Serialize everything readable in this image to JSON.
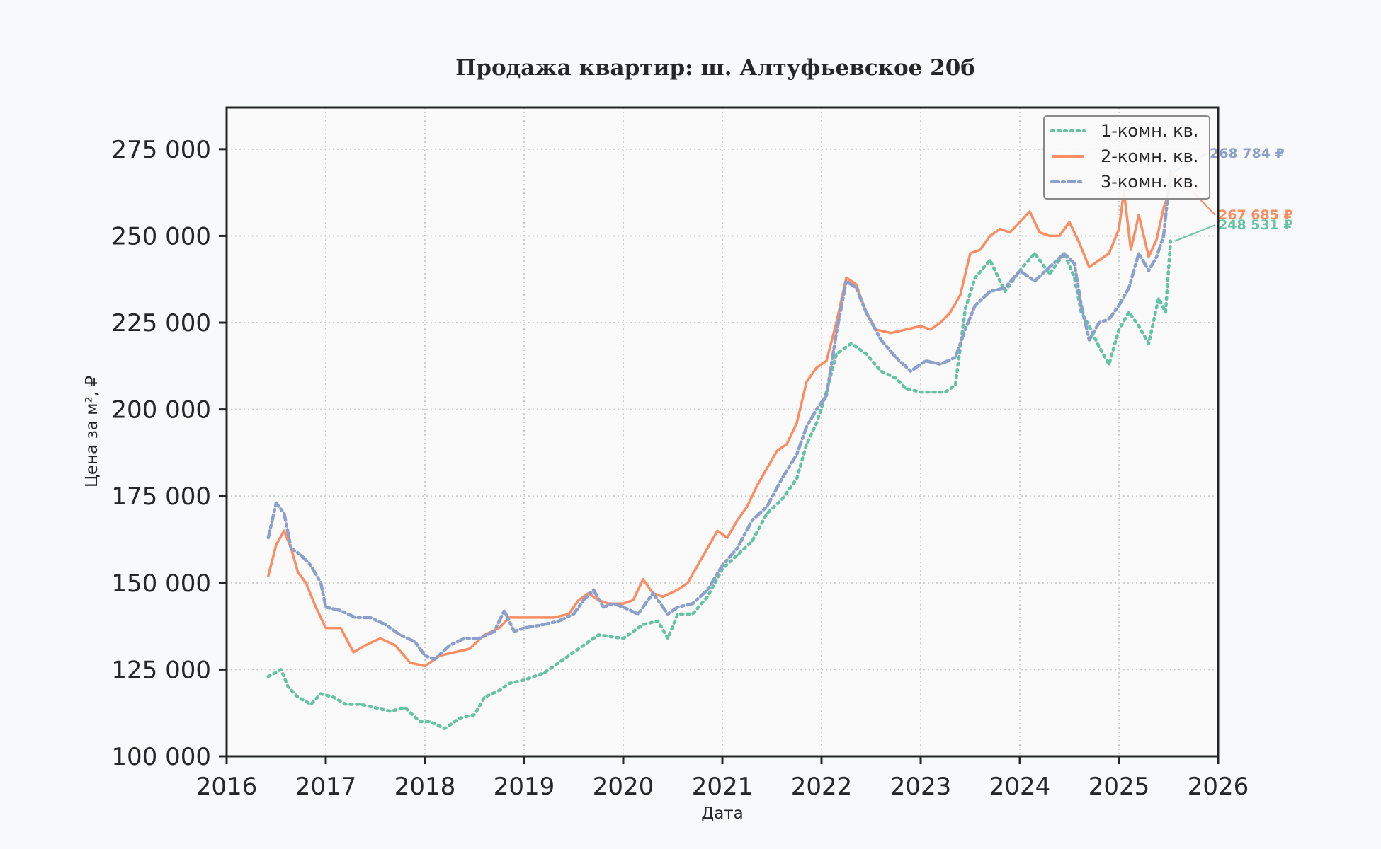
{
  "colors": {
    "one_room": "#66c2a5",
    "two_room": "#fc8d62",
    "three_room": "#8da0cb",
    "background": "#f8f9fa",
    "axes_face": "#fafafa",
    "grid": "#cfcfcf",
    "frame": "#262626"
  },
  "chart_data": {
    "type": "line",
    "title": "Продажа квартир: ш. Алтуфьевское 20б",
    "xlabel": "Дата",
    "ylabel": "Цена за м², ₽",
    "xlim": [
      2016,
      2026
    ],
    "ylim": [
      100000,
      287000
    ],
    "xticks": [
      2016,
      2017,
      2018,
      2019,
      2020,
      2021,
      2022,
      2023,
      2024,
      2025,
      2026
    ],
    "yticks": [
      100000,
      125000,
      150000,
      175000,
      200000,
      225000,
      250000,
      275000
    ],
    "ytick_labels": [
      "100 000",
      "125 000",
      "150 000",
      "175 000",
      "200 000",
      "225 000",
      "250 000",
      "275 000"
    ],
    "grid": true,
    "legend_position": "top-right",
    "series": [
      {
        "name": "1-комн. кв.",
        "style": "dotted",
        "color": "#66c2a5",
        "last_label": "248 531 ₽",
        "x": [
          2016.42,
          2016.55,
          2016.62,
          2016.72,
          2016.85,
          2016.95,
          2017.08,
          2017.2,
          2017.35,
          2017.5,
          2017.65,
          2017.8,
          2017.95,
          2018.05,
          2018.2,
          2018.35,
          2018.5,
          2018.6,
          2018.75,
          2018.85,
          2019.0,
          2019.2,
          2019.4,
          2019.55,
          2019.75,
          2020.0,
          2020.2,
          2020.35,
          2020.45,
          2020.55,
          2020.7,
          2020.85,
          2021.0,
          2021.15,
          2021.3,
          2021.45,
          2021.6,
          2021.75,
          2021.85,
          2021.95,
          2022.05,
          2022.15,
          2022.3,
          2022.45,
          2022.6,
          2022.75,
          2022.85,
          2023.0,
          2023.15,
          2023.25,
          2023.35,
          2023.45,
          2023.55,
          2023.7,
          2023.85,
          2024.0,
          2024.15,
          2024.3,
          2024.45,
          2024.55,
          2024.62,
          2024.7,
          2024.8,
          2024.9,
          2025.0,
          2025.1,
          2025.2,
          2025.3,
          2025.4,
          2025.47,
          2025.52
        ],
        "y": [
          123000,
          125000,
          120000,
          117000,
          115000,
          118000,
          117000,
          115000,
          115000,
          114000,
          113000,
          114000,
          110000,
          110000,
          108000,
          111000,
          112000,
          117000,
          119000,
          121000,
          122000,
          124000,
          128000,
          131000,
          135000,
          134000,
          138000,
          139000,
          134000,
          141000,
          141000,
          146000,
          154000,
          158000,
          162000,
          170000,
          174000,
          180000,
          190000,
          196000,
          205000,
          216000,
          219000,
          216000,
          211000,
          209000,
          206000,
          205000,
          205000,
          205000,
          207000,
          229000,
          238000,
          243000,
          234000,
          240000,
          245000,
          239000,
          245000,
          238000,
          228000,
          224000,
          218000,
          213000,
          223000,
          228000,
          224000,
          219000,
          232000,
          228000,
          248531
        ]
      },
      {
        "name": "2-комн. кв.",
        "style": "solid",
        "color": "#fc8d62",
        "last_label": "267 685 ₽",
        "x": [
          2016.42,
          2016.5,
          2016.58,
          2016.65,
          2016.72,
          2016.8,
          2016.9,
          2017.0,
          2017.15,
          2017.28,
          2017.4,
          2017.55,
          2017.7,
          2017.85,
          2018.0,
          2018.15,
          2018.3,
          2018.45,
          2018.6,
          2018.75,
          2018.85,
          2019.0,
          2019.15,
          2019.3,
          2019.45,
          2019.55,
          2019.65,
          2019.75,
          2019.85,
          2020.0,
          2020.1,
          2020.2,
          2020.3,
          2020.4,
          2020.55,
          2020.65,
          2020.75,
          2020.85,
          2020.95,
          2021.05,
          2021.15,
          2021.25,
          2021.35,
          2021.45,
          2021.55,
          2021.65,
          2021.75,
          2021.85,
          2021.95,
          2022.05,
          2022.15,
          2022.25,
          2022.35,
          2022.45,
          2022.55,
          2022.7,
          2022.85,
          2023.0,
          2023.1,
          2023.2,
          2023.3,
          2023.4,
          2023.5,
          2023.6,
          2023.7,
          2023.8,
          2023.9,
          2024.0,
          2024.1,
          2024.2,
          2024.3,
          2024.4,
          2024.5,
          2024.6,
          2024.7,
          2024.8,
          2024.9,
          2025.0,
          2025.05,
          2025.12,
          2025.2,
          2025.3,
          2025.38,
          2025.45,
          2025.5,
          2025.53
        ],
        "y": [
          152000,
          161000,
          165000,
          160000,
          153000,
          150000,
          143000,
          137000,
          137000,
          130000,
          132000,
          134000,
          132000,
          127000,
          126000,
          129000,
          130000,
          131000,
          135000,
          137000,
          140000,
          140000,
          140000,
          140000,
          141000,
          145000,
          147000,
          145000,
          144000,
          144000,
          145000,
          151000,
          147000,
          146000,
          148000,
          150000,
          155000,
          160000,
          165000,
          163000,
          168000,
          172000,
          178000,
          183000,
          188000,
          190000,
          196000,
          208000,
          212000,
          214000,
          225000,
          238000,
          236000,
          228000,
          223000,
          222000,
          223000,
          224000,
          223000,
          225000,
          228000,
          233000,
          245000,
          246000,
          250000,
          252000,
          251000,
          254000,
          257000,
          251000,
          250000,
          250000,
          254000,
          248000,
          241000,
          243000,
          245000,
          252000,
          263000,
          246000,
          256000,
          244000,
          249000,
          258000,
          262000,
          267685
        ]
      },
      {
        "name": "3-комн. кв.",
        "style": "dash-dot",
        "color": "#8da0cb",
        "last_label": "268 784 ₽",
        "x": [
          2016.42,
          2016.5,
          2016.58,
          2016.65,
          2016.75,
          2016.85,
          2016.95,
          2017.0,
          2017.15,
          2017.3,
          2017.45,
          2017.6,
          2017.75,
          2017.9,
          2018.0,
          2018.1,
          2018.25,
          2018.4,
          2018.55,
          2018.7,
          2018.8,
          2018.9,
          2019.0,
          2019.2,
          2019.35,
          2019.5,
          2019.6,
          2019.7,
          2019.8,
          2019.9,
          2020.0,
          2020.15,
          2020.3,
          2020.45,
          2020.55,
          2020.7,
          2020.85,
          2021.0,
          2021.15,
          2021.3,
          2021.45,
          2021.6,
          2021.75,
          2021.85,
          2021.95,
          2022.05,
          2022.15,
          2022.25,
          2022.35,
          2022.45,
          2022.6,
          2022.75,
          2022.9,
          2023.05,
          2023.2,
          2023.35,
          2023.45,
          2023.55,
          2023.7,
          2023.85,
          2024.0,
          2024.15,
          2024.3,
          2024.45,
          2024.55,
          2024.62,
          2024.7,
          2024.8,
          2024.9,
          2025.0,
          2025.1,
          2025.2,
          2025.3,
          2025.38,
          2025.45,
          2025.52
        ],
        "y": [
          163000,
          173000,
          170000,
          160000,
          158000,
          155000,
          150000,
          143000,
          142000,
          140000,
          140000,
          138000,
          135000,
          133000,
          129000,
          128000,
          132000,
          134000,
          134000,
          136000,
          142000,
          136000,
          137000,
          138000,
          139000,
          141000,
          145000,
          148000,
          143000,
          144000,
          143000,
          141000,
          147000,
          141000,
          143000,
          144000,
          148000,
          155000,
          160000,
          168000,
          172000,
          180000,
          187000,
          195000,
          200000,
          204000,
          222000,
          237000,
          235000,
          228000,
          220000,
          215000,
          211000,
          214000,
          213000,
          215000,
          223000,
          230000,
          234000,
          235000,
          240000,
          237000,
          241000,
          245000,
          242000,
          230000,
          220000,
          225000,
          226000,
          230000,
          235000,
          245000,
          240000,
          244000,
          250000,
          268784
        ]
      }
    ]
  }
}
